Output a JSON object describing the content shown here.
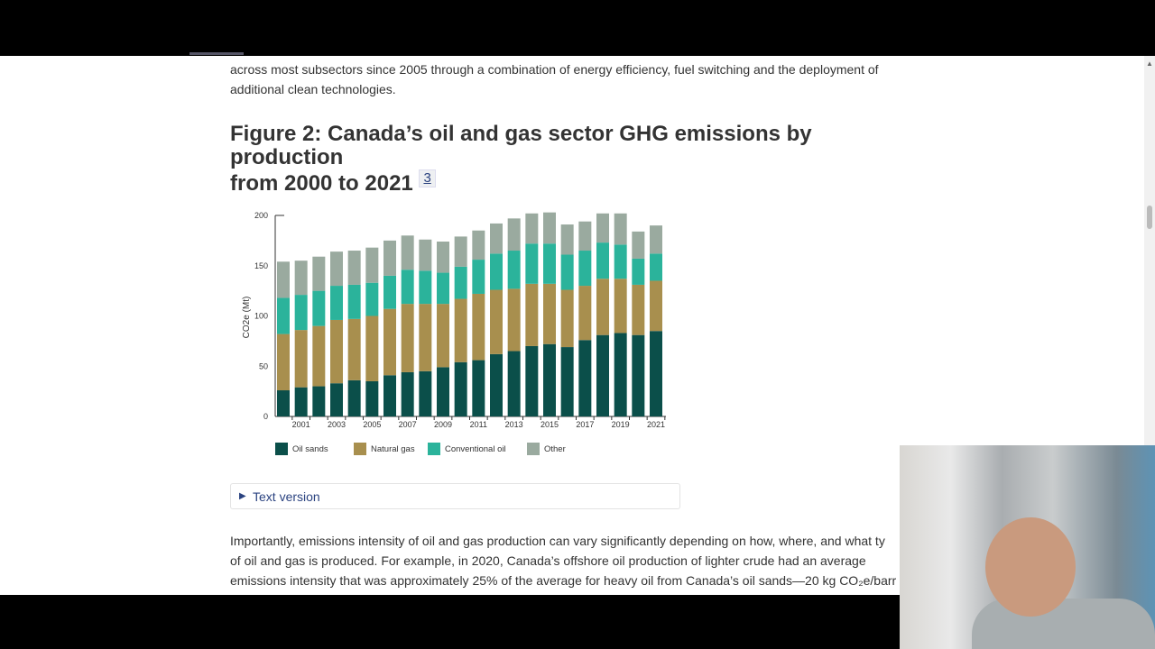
{
  "intro_text": [
    "across most subsectors since 2005 through a combination of energy efficiency, fuel switching and the deployment of",
    "additional clean technologies."
  ],
  "figure": {
    "title_line1": "Figure 2: Canada’s oil and gas sector GHG emissions by production",
    "title_line2": "from 2000 to 2021",
    "footnote": "3"
  },
  "chart_data": {
    "type": "bar",
    "stacked": true,
    "title": "",
    "xlabel": "",
    "ylabel": "CO2e (Mt)",
    "ylim": [
      0,
      200
    ],
    "yticks": [
      "0",
      "50",
      "100",
      "150",
      "200"
    ],
    "categories": [
      "2000",
      "2001",
      "2002",
      "2003",
      "2004",
      "2005",
      "2006",
      "2007",
      "2008",
      "2009",
      "2010",
      "2011",
      "2012",
      "2013",
      "2014",
      "2015",
      "2016",
      "2017",
      "2018",
      "2019",
      "2020",
      "2021"
    ],
    "xtick_labels": [
      "2001",
      "2003",
      "2005",
      "2007",
      "2009",
      "2011",
      "2013",
      "2015",
      "2017",
      "2019",
      "2021"
    ],
    "legend_position": "bottom",
    "grid": false,
    "series": [
      {
        "name": "Oil sands",
        "color": "#0b4f4a",
        "values": [
          26,
          29,
          30,
          33,
          36,
          35,
          41,
          44,
          45,
          49,
          54,
          56,
          62,
          65,
          70,
          72,
          69,
          76,
          81,
          83,
          81,
          85
        ]
      },
      {
        "name": "Natural gas",
        "color": "#a88f4e",
        "values": [
          56,
          57,
          60,
          63,
          61,
          65,
          66,
          68,
          67,
          63,
          63,
          66,
          64,
          62,
          62,
          60,
          57,
          54,
          56,
          54,
          50,
          50
        ]
      },
      {
        "name": "Conventional oil",
        "color": "#2bb39b",
        "values": [
          36,
          35,
          35,
          34,
          34,
          33,
          33,
          34,
          33,
          31,
          32,
          34,
          36,
          38,
          40,
          40,
          35,
          35,
          36,
          34,
          26,
          27
        ]
      },
      {
        "name": "Other",
        "color": "#9aaa9f",
        "values": [
          36,
          34,
          34,
          34,
          34,
          35,
          35,
          34,
          31,
          31,
          30,
          29,
          30,
          32,
          30,
          31,
          30,
          29,
          29,
          31,
          27,
          28
        ]
      }
    ]
  },
  "text_version": {
    "label": "Text version"
  },
  "body_text": [
    "Importantly, emissions intensity of oil and gas production can vary significantly depending on how, where, and what ty",
    "of oil and gas is produced. For example, in 2020, Canada’s offshore oil production of lighter crude had an average",
    "emissions intensity that was approximately 25% of the average for heavy oil from Canada’s oil sands—20 kg CO₂e/barr"
  ]
}
